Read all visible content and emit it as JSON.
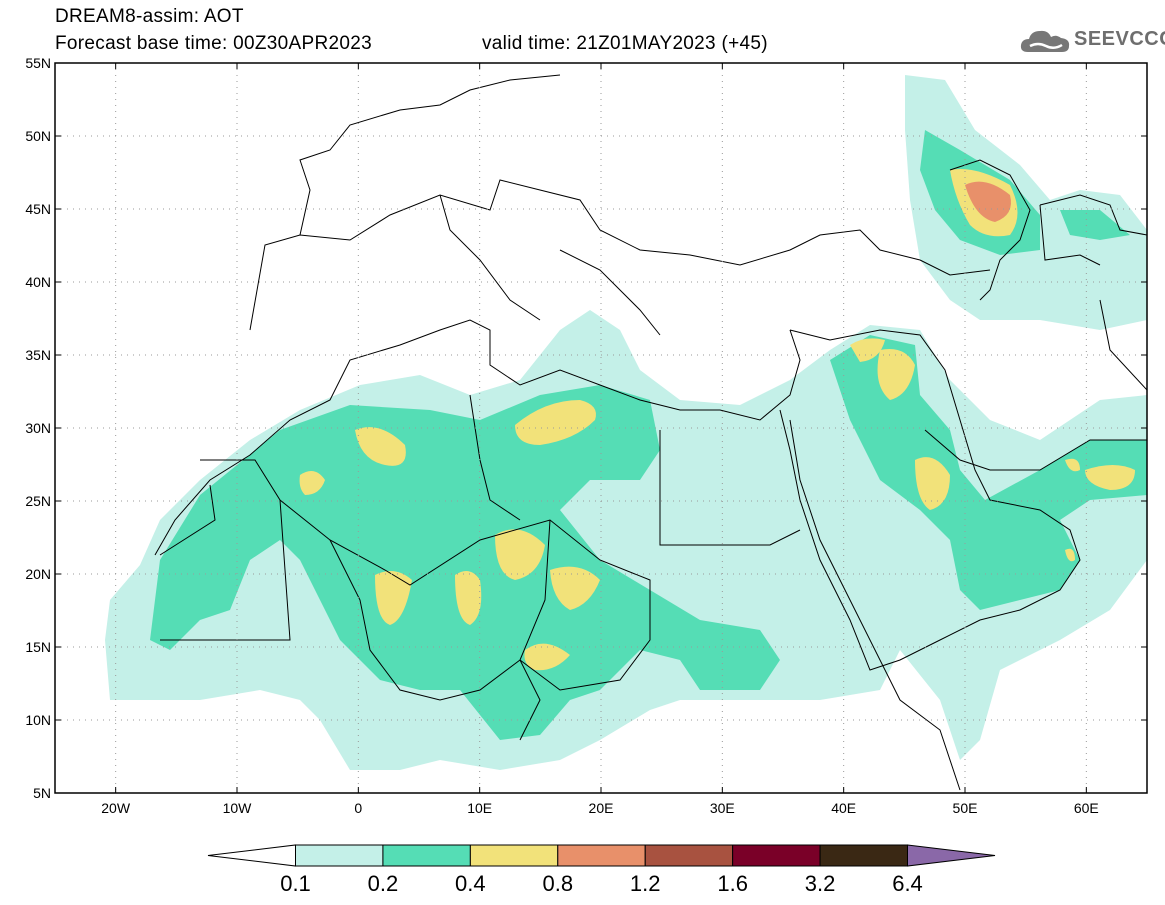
{
  "header": {
    "line1": "DREAM8-assim: AOT",
    "line2": "Forecast base time: 00Z30APR2023",
    "valid": "valid time: 21Z01MAY2023 (+45)"
  },
  "logo": {
    "text": "SEEVCCC",
    "icon": "cloud-icon"
  },
  "map": {
    "lon_range": [
      -25,
      65
    ],
    "lat_range": [
      5,
      55
    ],
    "lat_ticks": [
      "5N",
      "10N",
      "15N",
      "20N",
      "25N",
      "30N",
      "35N",
      "40N",
      "45N",
      "50N",
      "55N"
    ],
    "lon_ticks": [
      "20W",
      "10W",
      "0",
      "10E",
      "20E",
      "30E",
      "40E",
      "50E",
      "60E"
    ],
    "grid": "dotted"
  },
  "colorbar": {
    "labels": [
      "0.1",
      "0.2",
      "0.4",
      "0.8",
      "1.2",
      "1.6",
      "3.2",
      "6.4"
    ],
    "colors": [
      "#ffffff",
      "#c4f0e8",
      "#55ddb5",
      "#f2e27a",
      "#e8906a",
      "#a85240",
      "#7a0028",
      "#3a2814",
      "#8a68a8"
    ]
  }
}
